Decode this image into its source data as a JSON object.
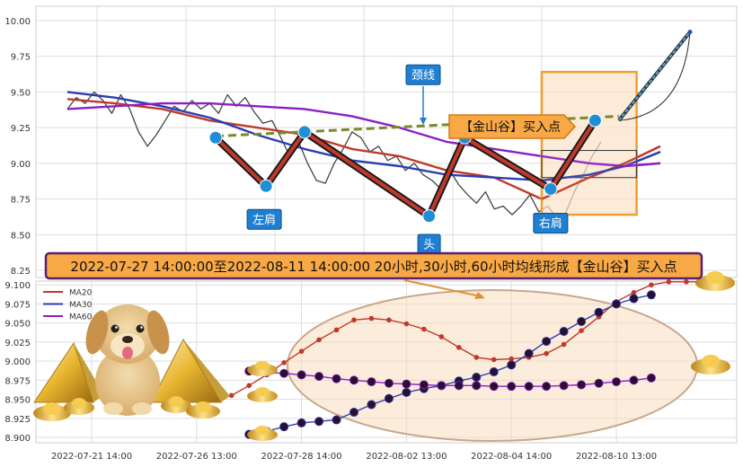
{
  "chart_data": [
    {
      "type": "line",
      "panel": "top",
      "title": "",
      "ylim": [
        8.2,
        10.1
      ],
      "y_ticks": [
        "10.00",
        "9.75",
        "9.50",
        "9.25",
        "9.00",
        "8.75",
        "8.50",
        "8.25"
      ],
      "y_tick_values": [
        10.0,
        9.75,
        9.5,
        9.25,
        9.0,
        8.75,
        8.5,
        8.25
      ],
      "x_range": [
        0,
        100
      ],
      "x_grid": [
        5,
        20,
        35,
        50,
        65,
        80
      ],
      "grid": true,
      "series": [
        {
          "name": "",
          "role": "price",
          "color": "#444444",
          "x": [
            0,
            1.5,
            3,
            4.5,
            6,
            7.5,
            9,
            10.5,
            12,
            13.5,
            15,
            16.5,
            18,
            19.5,
            21,
            22.5,
            24,
            25.5,
            27,
            28.5,
            30,
            31.5,
            33,
            34.5,
            36,
            37.5,
            39,
            40.5,
            42,
            43.5,
            45,
            46.5,
            48,
            49.5,
            51,
            52.5,
            54,
            55.5,
            57,
            58.5,
            60,
            61.5,
            63,
            64.5,
            66,
            67.5,
            69,
            70.5,
            72,
            73.5,
            75,
            76.5,
            78,
            79.5,
            81,
            82.5,
            84,
            85.5,
            87,
            88.5,
            90
          ],
          "values": [
            9.38,
            9.46,
            9.42,
            9.5,
            9.44,
            9.35,
            9.48,
            9.38,
            9.22,
            9.12,
            9.2,
            9.3,
            9.4,
            9.36,
            9.44,
            9.38,
            9.42,
            9.35,
            9.48,
            9.4,
            9.46,
            9.36,
            9.28,
            9.3,
            9.18,
            9.05,
            9.15,
            9.0,
            8.88,
            8.86,
            9.0,
            9.1,
            9.22,
            9.18,
            9.08,
            9.12,
            9.02,
            9.05,
            8.95,
            9.0,
            8.92,
            8.88,
            8.82,
            8.95,
            8.85,
            8.78,
            8.72,
            8.8,
            8.68,
            8.7,
            8.64,
            8.7,
            8.78,
            8.66,
            8.7,
            8.62,
            8.65,
            8.8,
            8.92,
            9.05,
            9.15
          ]
        },
        {
          "name": "",
          "role": "ma-red",
          "color": "#c0392b",
          "x": [
            0,
            8,
            16,
            24,
            32,
            40,
            48,
            56,
            64,
            72,
            80,
            88,
            94,
            100
          ],
          "values": [
            9.45,
            9.42,
            9.38,
            9.3,
            9.25,
            9.2,
            9.1,
            9.05,
            8.95,
            8.9,
            8.75,
            8.9,
            9.0,
            9.12
          ]
        },
        {
          "name": "",
          "role": "ma-blue",
          "color": "#2c3eb0",
          "x": [
            0,
            8,
            16,
            24,
            32,
            40,
            48,
            56,
            64,
            72,
            80,
            88,
            94,
            100
          ],
          "values": [
            9.5,
            9.46,
            9.4,
            9.32,
            9.2,
            9.1,
            9.02,
            8.98,
            8.92,
            8.9,
            8.88,
            8.92,
            8.98,
            9.08
          ]
        },
        {
          "name": "",
          "role": "ma-purple",
          "color": "#8b1fc6",
          "x": [
            0,
            8,
            16,
            24,
            32,
            40,
            48,
            56,
            64,
            72,
            80,
            88,
            94,
            100
          ],
          "values": [
            9.38,
            9.4,
            9.42,
            9.42,
            9.4,
            9.38,
            9.33,
            9.25,
            9.15,
            9.1,
            9.05,
            9.0,
            8.98,
            9.0
          ]
        }
      ],
      "pattern_points": [
        {
          "name": "left-shoulder-start",
          "x": 25,
          "y": 9.18
        },
        {
          "name": "left-shoulder",
          "x": 33.5,
          "y": 8.84,
          "label": "左肩"
        },
        {
          "name": "neck-left",
          "x": 40,
          "y": 9.22
        },
        {
          "name": "head",
          "x": 61,
          "y": 8.63,
          "label": "头"
        },
        {
          "name": "neck-right",
          "x": 67,
          "y": 9.18
        },
        {
          "name": "right-shoulder",
          "x": 81.5,
          "y": 8.82,
          "label": "右肩"
        },
        {
          "name": "right-shoulder-end",
          "x": 89,
          "y": 9.3
        }
      ],
      "neckline": {
        "label": "颈线",
        "x": [
          25,
          93
        ],
        "values": [
          9.19,
          9.33
        ]
      },
      "projection": {
        "x": [
          93,
          105
        ],
        "values": [
          9.3,
          9.92
        ]
      },
      "buy_point_label": "【金山谷】买入点"
    },
    {
      "type": "line",
      "panel": "bottom",
      "ylim": [
        8.893,
        9.105
      ],
      "y_ticks": [
        "9.100",
        "9.075",
        "9.050",
        "9.025",
        "9.000",
        "8.975",
        "8.950",
        "8.925",
        "8.900"
      ],
      "y_tick_values": [
        9.1,
        9.075,
        9.05,
        9.025,
        9.0,
        8.975,
        8.95,
        8.925,
        8.9
      ],
      "x_ticks": [
        "2022-07-21 14:00",
        "2022-07-26 13:00",
        "2022-07-28 14:00",
        "2022-08-02 13:00",
        "2022-08-04 14:00",
        "2022-08-10 13:00"
      ],
      "x_tick_positions": [
        0,
        6,
        12,
        18,
        24,
        30
      ],
      "x_range": [
        -2,
        39
      ],
      "grid": true,
      "legend_position": "top-left",
      "series": [
        {
          "name": "MA20",
          "color": "#c0392b",
          "markers": false,
          "x": [
            8,
            9,
            10,
            11,
            12,
            13,
            14,
            15,
            16,
            17,
            18,
            19,
            20,
            21,
            22,
            23,
            24,
            25,
            26,
            27,
            28,
            29,
            30,
            31,
            32,
            33,
            34,
            35
          ],
          "values": [
            8.955,
            8.968,
            8.982,
            8.998,
            9.013,
            9.028,
            9.041,
            9.054,
            9.056,
            9.054,
            9.049,
            9.042,
            9.032,
            9.018,
            9.005,
            9.002,
            9.003,
            9.005,
            9.01,
            9.022,
            9.04,
            9.058,
            9.078,
            9.09,
            9.1,
            9.104,
            9.104,
            9.104
          ]
        },
        {
          "name": "MA30",
          "color": "#2c3eb0",
          "markers": true,
          "x": [
            9,
            10,
            11,
            12,
            13,
            14,
            15,
            16,
            17,
            18,
            19,
            20,
            21,
            22,
            23,
            24,
            25,
            26,
            27,
            28,
            29,
            30,
            31,
            32
          ],
          "values": [
            8.904,
            8.908,
            8.914,
            8.919,
            8.921,
            8.923,
            8.933,
            8.943,
            8.951,
            8.959,
            8.964,
            8.968,
            8.974,
            8.979,
            8.986,
            8.995,
            9.01,
            9.026,
            9.039,
            9.052,
            9.064,
            9.075,
            9.082,
            9.087
          ]
        },
        {
          "name": "MA60",
          "color": "#8b1fc6",
          "markers": true,
          "x": [
            9,
            10,
            11,
            12,
            13,
            14,
            15,
            16,
            17,
            18,
            19,
            20,
            21,
            22,
            23,
            24,
            25,
            26,
            27,
            28,
            29,
            30,
            31,
            32
          ],
          "values": [
            8.987,
            8.985,
            8.984,
            8.982,
            8.98,
            8.977,
            8.975,
            8.973,
            8.971,
            8.97,
            8.969,
            8.968,
            8.968,
            8.968,
            8.967,
            8.967,
            8.967,
            8.967,
            8.968,
            8.969,
            8.971,
            8.973,
            8.975,
            8.978
          ]
        }
      ]
    }
  ],
  "banner": "2022-07-27 14:00:00至2022-08-11 14:00:00 20小时,30小时,60小时均线形成【金山谷】买入点"
}
